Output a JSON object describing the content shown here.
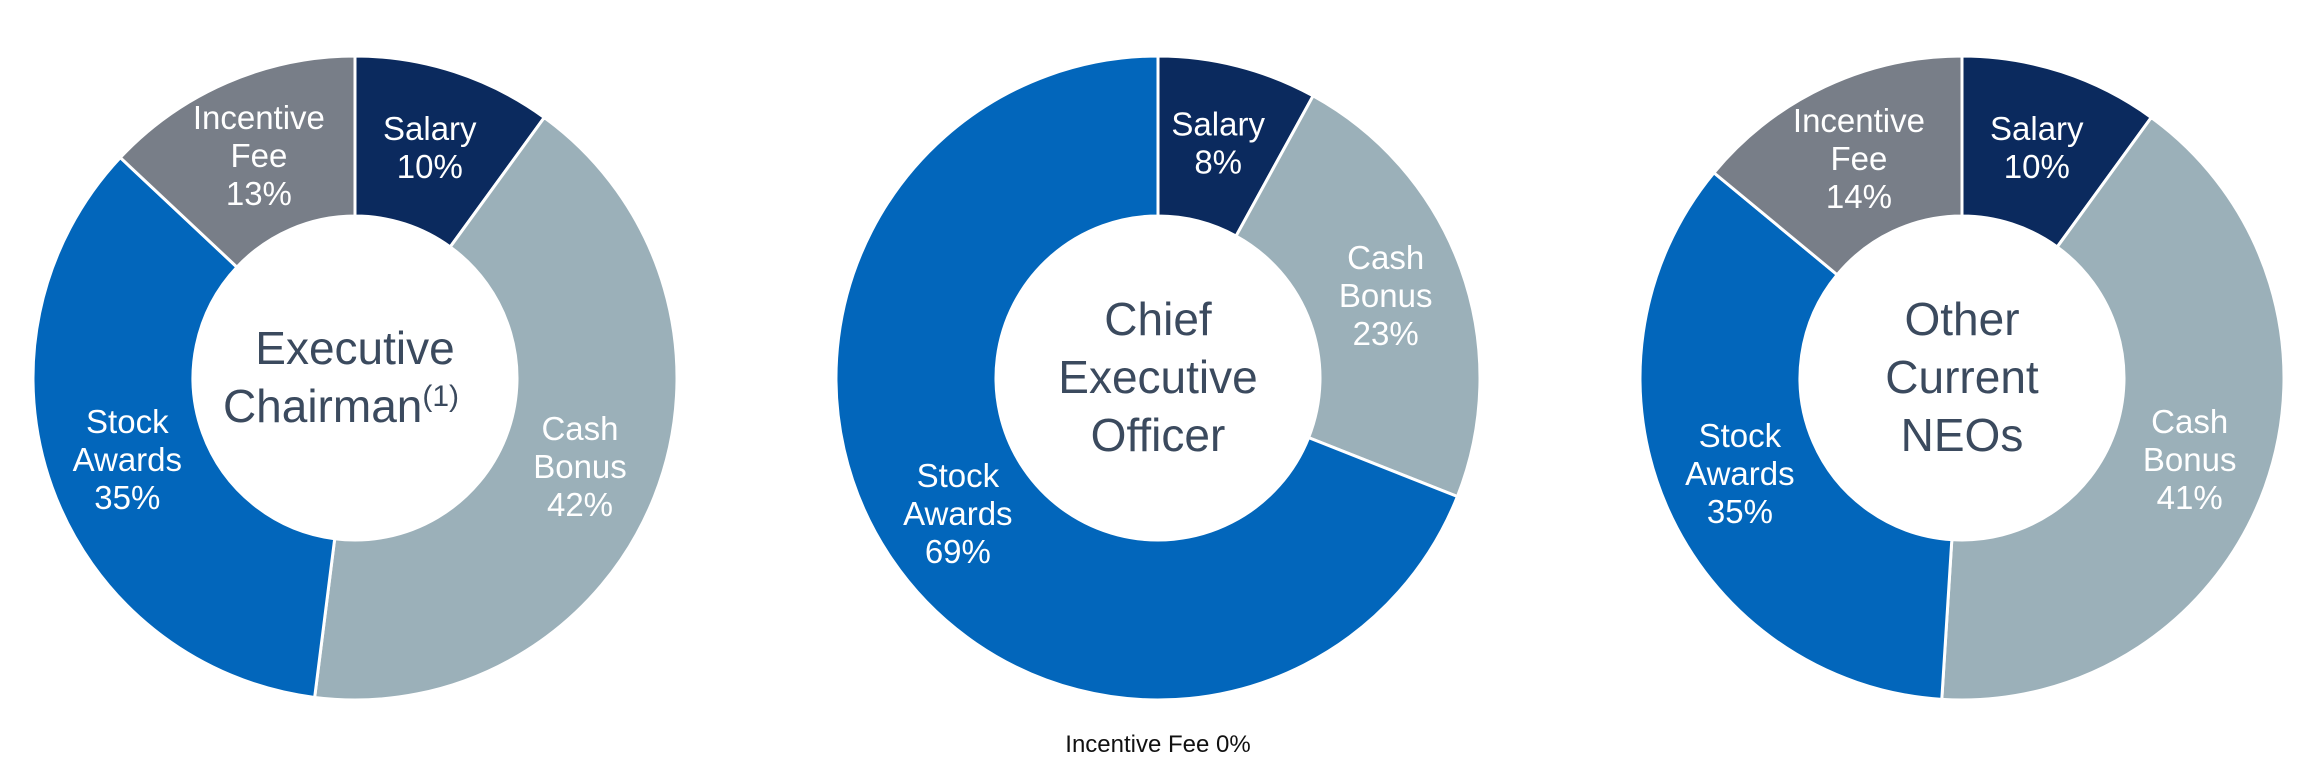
{
  "colors": {
    "Salary": "#0b2a5e",
    "Cash Bonus": "#9bb0b9",
    "Stock Awards": "#0266bb",
    "Incentive Fee": "#787e88",
    "center_text": "#3b4a5e",
    "slice_text": "#ffffff",
    "separator": "#ffffff"
  },
  "chart_data": [
    {
      "type": "pie",
      "variant": "donut",
      "title_lines": [
        "Executive",
        "Chairman"
      ],
      "title_superscript": "(1)",
      "slices": [
        {
          "category": "Salary",
          "value": 10,
          "label_lines": [
            "Salary",
            "10%"
          ]
        },
        {
          "category": "Cash Bonus",
          "value": 42,
          "label_lines": [
            "Cash",
            "Bonus",
            "42%"
          ]
        },
        {
          "category": "Stock Awards",
          "value": 35,
          "label_lines": [
            "Stock",
            "Awards",
            "35%"
          ]
        },
        {
          "category": "Incentive Fee",
          "value": 13,
          "label_lines": [
            "Incentive",
            "Fee",
            "13%"
          ]
        }
      ]
    },
    {
      "type": "pie",
      "variant": "donut",
      "title_lines": [
        "Chief",
        "Executive",
        "Officer"
      ],
      "slices": [
        {
          "category": "Salary",
          "value": 8,
          "label_lines": [
            "Salary",
            "8%"
          ]
        },
        {
          "category": "Cash Bonus",
          "value": 23,
          "label_lines": [
            "Cash",
            "Bonus",
            "23%"
          ]
        },
        {
          "category": "Stock Awards",
          "value": 69,
          "label_lines": [
            "Stock",
            "Awards",
            "69%"
          ]
        },
        {
          "category": "Incentive Fee",
          "value": 0
        }
      ],
      "footnote": "Incentive Fee 0%"
    },
    {
      "type": "pie",
      "variant": "donut",
      "title_lines": [
        "Other",
        "Current",
        "NEOs"
      ],
      "slices": [
        {
          "category": "Salary",
          "value": 10,
          "label_lines": [
            "Salary",
            "10%"
          ]
        },
        {
          "category": "Cash Bonus",
          "value": 41,
          "label_lines": [
            "Cash",
            "Bonus",
            "41%"
          ]
        },
        {
          "category": "Stock Awards",
          "value": 35,
          "label_lines": [
            "Stock",
            "Awards",
            "35%"
          ]
        },
        {
          "category": "Incentive Fee",
          "value": 14,
          "label_lines": [
            "Incentive",
            "Fee",
            "14%"
          ]
        }
      ]
    }
  ]
}
